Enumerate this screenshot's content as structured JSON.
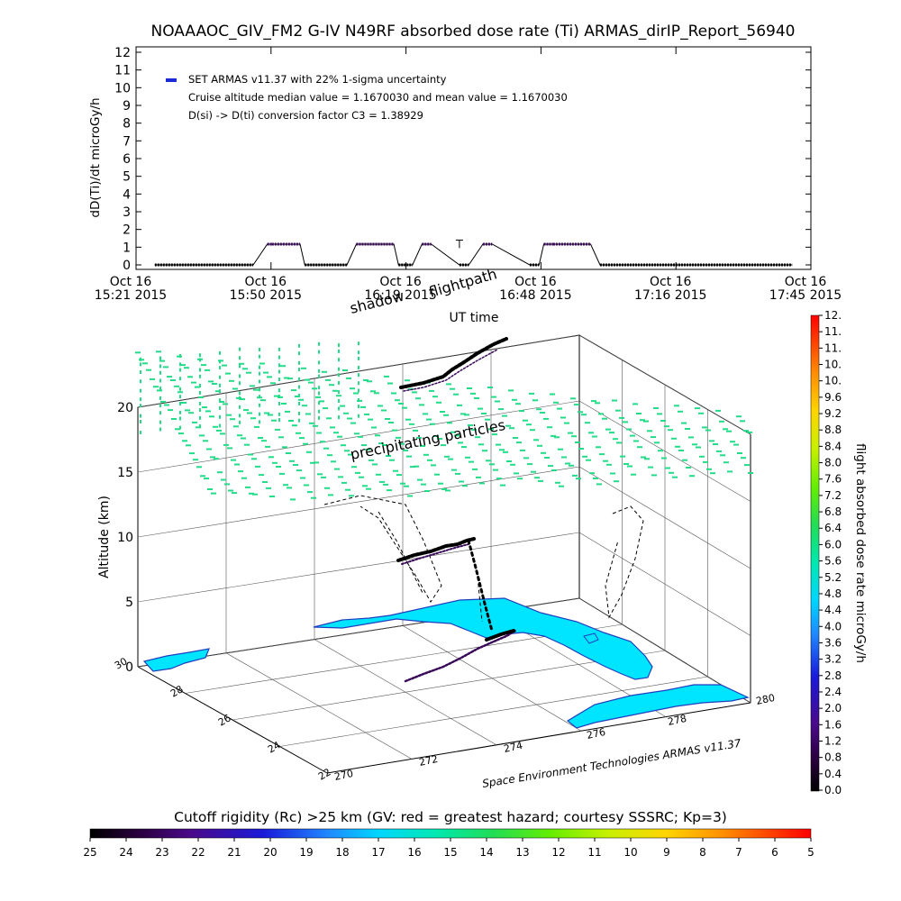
{
  "title": "NOAAAOC_GIV_FM2 G-IV   N49RF  absorbed dose rate (Ti) ARMAS_dirIP_Report_56940",
  "timeseries": {
    "ylabel": "dD(Ti)/dt microGy/h",
    "xlabel": "UT time",
    "ylim": [
      0,
      12
    ],
    "yticks": [
      "0",
      "1",
      "2",
      "3",
      "4",
      "5",
      "6",
      "7",
      "8",
      "9",
      "10",
      "11",
      "12"
    ],
    "xticks": [
      {
        "date": "Oct 16",
        "time": "15:21 2015"
      },
      {
        "date": "Oct 16",
        "time": "15:50 2015"
      },
      {
        "date": "Oct 16",
        "time": "16:19 2015"
      },
      {
        "date": "Oct 16",
        "time": "16:48 2015"
      },
      {
        "date": "Oct 16",
        "time": "17:16 2015"
      },
      {
        "date": "Oct 16",
        "time": "17:45 2015"
      }
    ],
    "legend": [
      "SET ARMAS v11.37 with 22% 1-sigma uncertainty",
      "Cruise altitude median value = 1.1670030 and mean value = 1.1670030",
      "D(si) -> D(ti) conversion factor C3 = 1.38929"
    ],
    "legend_color": "#1a2bd6",
    "trace_color": "#3a0a5a"
  },
  "chart_data": {
    "type": "line",
    "title": "NOAAAOC_GIV_FM2 G-IV   N49RF  absorbed dose rate (Ti) ARMAS_dirIP_Report_56940",
    "xlabel": "UT time",
    "ylabel": "dD(Ti)/dt microGy/h",
    "ylim": [
      0,
      12
    ],
    "series": [
      {
        "name": "SET ARMAS v11.37 with 22% 1-sigma uncertainty",
        "x": [
          "15:25",
          "15:46",
          "15:49",
          "15:50",
          "15:56",
          "15:57",
          "16:06",
          "16:08",
          "16:16",
          "16:17",
          "16:20",
          "16:22",
          "16:24",
          "16:30",
          "16:32",
          "16:35",
          "16:37",
          "16:45",
          "16:47",
          "16:48",
          "16:50",
          "16:58",
          "17:00",
          "17:41"
        ],
        "y": [
          0,
          0,
          1.17,
          1.17,
          1.17,
          0,
          0,
          1.17,
          1.17,
          0,
          0,
          1.17,
          1.17,
          0,
          0,
          1.17,
          1.17,
          0,
          0,
          1.17,
          1.17,
          1.17,
          0,
          0
        ]
      }
    ],
    "cruise_median": 1.167003,
    "cruise_mean": 1.167003
  },
  "scene3d": {
    "zlabel": "Altitude (km)",
    "zticks": [
      "0",
      "5",
      "10",
      "15",
      "20"
    ],
    "lat_ticks": [
      "30",
      "28",
      "26",
      "24",
      "22"
    ],
    "lon_ticks": [
      "270",
      "272",
      "274",
      "276",
      "278",
      "280"
    ],
    "annotations": {
      "flightpath": "flightpath",
      "shadow": "shadow",
      "precipitating": "precipitating particles"
    },
    "credit": "Space Environment Technologies ARMAS v11.37",
    "particle_color": "#22dd88",
    "land_color": "#00e5ff",
    "coast_color": "#1f3fbf"
  },
  "colorbar_right": {
    "label": "flight absorbed dose rate microGy/h",
    "ticks": [
      "0.0",
      "0.4",
      "0.8",
      "1.2",
      "1.6",
      "2.0",
      "2.4",
      "2.8",
      "3.2",
      "3.6",
      "4.0",
      "4.4",
      "4.8",
      "5.2",
      "5.6",
      "6.0",
      "6.4",
      "6.8",
      "7.2",
      "7.6",
      "8.0",
      "8.4",
      "8.8",
      "9.2",
      "9.6",
      "10.",
      "10.",
      "11.",
      "11.",
      "12."
    ]
  },
  "colorbar_bottom": {
    "label": "Cutoff rigidity (Rc) >25 km (GV: red = greatest hazard; courtesy SSSRC; Kp=3)",
    "ticks": [
      "25",
      "24",
      "23",
      "22",
      "21",
      "20",
      "19",
      "18",
      "17",
      "16",
      "15",
      "14",
      "13",
      "12",
      "11",
      "10",
      "9",
      "8",
      "7",
      "6",
      "5"
    ]
  }
}
